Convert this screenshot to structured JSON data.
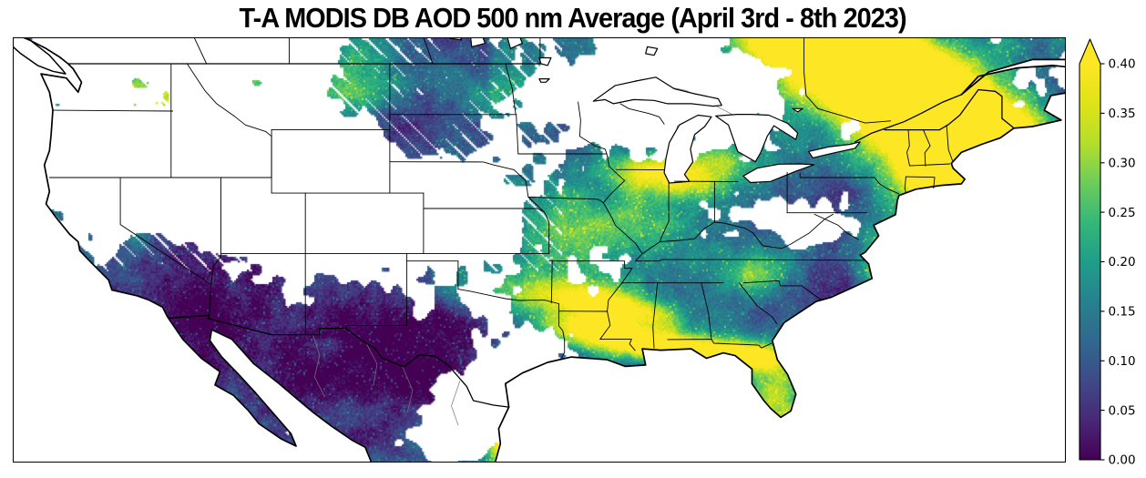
{
  "title": "T-A MODIS DB AOD 500 nm Average (April 3rd - 8th 2023)",
  "colors": {
    "background": "#ffffff",
    "map_border": "#000000",
    "coastline": "#000000",
    "state_line": "#000000",
    "admin_gray": "#777777",
    "no_data": "#ffffff",
    "viridis": [
      "#440154",
      "#482878",
      "#3e4a89",
      "#31688e",
      "#26828e",
      "#1f9e89",
      "#35b779",
      "#6dcd59",
      "#b5de2b",
      "#dfe318",
      "#fde725"
    ]
  },
  "chart_data": {
    "type": "heatmap",
    "title": "T-A MODIS DB AOD 500 nm Average (April 3rd - 8th 2023)",
    "variable": "MODIS Deep Blue Aerosol Optical Depth at 500 nm, averaged April 3rd - 8th 2023 (Terra-Aqua)",
    "region": "Contiguous United States with southern Canada and northern Mexico",
    "colormap": "viridis",
    "legend_position": "right",
    "grid": false,
    "colorbar": {
      "min": 0.0,
      "max": 0.4,
      "extend_max_arrow": true,
      "orientation": "vertical",
      "tick_values": [
        0.0,
        0.05,
        0.1,
        0.15,
        0.2,
        0.25,
        0.3,
        0.35,
        0.4
      ],
      "tick_labels": [
        "0.00",
        "0.05",
        "0.10",
        "0.15",
        "0.20",
        "0.25",
        "0.30",
        "0.35",
        "0.40"
      ]
    },
    "observations": [
      "Very low AOD (0.02-0.08, dark purple) densely covering Nevada, Utah, Arizona, New Mexico, west Texas, Chihuahua and Baja California",
      "Smoke plume with AOD > 0.40 (yellow) in a diagonal band over southern Quebec / Ontario and northern New England",
      "AOD > 0.40 yellow patch over south Texas / northeastern Mexico reaching the bottom of the map",
      "Elevated AOD streaks (0.25-0.40) across east Texas, Louisiana and the Red River valley",
      "Moderate AOD (0.15-0.25, teal-green) over Washington state, the upper Midwest, the lower Great Lakes shore, the Southeast and Florida, with yellow-green spots near south Florida",
      "White no-data gaps over Oregon, Idaho, Wyoming, Colorado, Nebraska, central Texas, Kentucky / West Virginia, Minnesota and the Great Lakes"
    ],
    "hotspots": [
      {
        "name": "quebec-smoke-plume-core",
        "fx": 0.845,
        "fy": 0.13,
        "sx": 120,
        "sy": 42,
        "rot": 0.66,
        "amp": 0.55
      },
      {
        "name": "quebec-plume-ne-band",
        "fx": 0.95,
        "fy": 0.24,
        "sx": 70,
        "sy": 26,
        "rot": 0.66,
        "amp": 0.38
      },
      {
        "name": "new-england-plume-arm",
        "fx": 0.885,
        "fy": 0.34,
        "sx": 55,
        "sy": 22,
        "rot": 0.66,
        "amp": 0.3
      },
      {
        "name": "ontario-plume-nw",
        "fx": 0.765,
        "fy": 0.02,
        "sx": 70,
        "sy": 30,
        "rot": 0.5,
        "amp": 0.42
      },
      {
        "name": "south-texas-smoke",
        "fx": 0.472,
        "fy": 0.92,
        "sx": 22,
        "sy": 34,
        "rot": 0,
        "amp": 0.5
      },
      {
        "name": "south-texas-secondary",
        "fx": 0.468,
        "fy": 0.8,
        "sx": 13,
        "sy": 18,
        "rot": 0,
        "amp": 0.25
      },
      {
        "name": "east-texas-streak",
        "fx": 0.56,
        "fy": 0.695,
        "sx": 55,
        "sy": 13,
        "rot": 0.12,
        "amp": 0.33
      },
      {
        "name": "louisiana-streak",
        "fx": 0.635,
        "fy": 0.735,
        "sx": 45,
        "sy": 11,
        "rot": 0.08,
        "amp": 0.33
      },
      {
        "name": "arklatex-band",
        "fx": 0.575,
        "fy": 0.635,
        "sx": 45,
        "sy": 11,
        "rot": 0.18,
        "amp": 0.25
      },
      {
        "name": "gulf-coast-louisiana",
        "fx": 0.7,
        "fy": 0.75,
        "sx": 30,
        "sy": 12,
        "rot": 0,
        "amp": 0.28
      },
      {
        "name": "red-river-band",
        "fx": 0.5,
        "fy": 0.615,
        "sx": 60,
        "sy": 16,
        "rot": 0.08,
        "amp": 0.2
      },
      {
        "name": "florida-south",
        "fx": 0.742,
        "fy": 0.93,
        "sx": 13,
        "sy": 16,
        "rot": 0,
        "amp": 0.33
      },
      {
        "name": "florida-mid",
        "fx": 0.728,
        "fy": 0.84,
        "sx": 18,
        "sy": 26,
        "rot": 0,
        "amp": 0.16
      },
      {
        "name": "washington-cluster",
        "fx": 0.135,
        "fy": 0.155,
        "sx": 55,
        "sy": 38,
        "rot": 0,
        "amp": 0.22
      },
      {
        "name": "idaho-panhandle",
        "fx": 0.215,
        "fy": 0.1,
        "sx": 45,
        "sy": 28,
        "rot": 0,
        "amp": 0.14
      },
      {
        "name": "california-central-valley",
        "fx": 0.105,
        "fy": 0.4,
        "sx": 11,
        "sy": 30,
        "rot": -0.45,
        "amp": 0.18
      },
      {
        "name": "lake-michigan-shore",
        "fx": 0.615,
        "fy": 0.325,
        "sx": 40,
        "sy": 14,
        "rot": 0.15,
        "amp": 0.22
      },
      {
        "name": "michigan-band",
        "fx": 0.66,
        "fy": 0.295,
        "sx": 35,
        "sy": 16,
        "rot": 0.1,
        "amp": 0.15
      },
      {
        "name": "midwest-patch",
        "fx": 0.545,
        "fy": 0.45,
        "sx": 60,
        "sy": 30,
        "rot": 0,
        "amp": 0.12
      },
      {
        "name": "appalachia-green",
        "fx": 0.705,
        "fy": 0.55,
        "sx": 30,
        "sy": 15,
        "rot": 0,
        "amp": 0.14
      },
      {
        "name": "chesapeake-coastal",
        "fx": 0.825,
        "fy": 0.53,
        "sx": 16,
        "sy": 26,
        "rot": 0,
        "amp": 0.2
      },
      {
        "name": "montana-teal",
        "fx": 0.33,
        "fy": 0.095,
        "sx": 55,
        "sy": 25,
        "rot": 0,
        "amp": 0.15
      },
      {
        "name": "minnesota-teal",
        "fx": 0.47,
        "fy": 0.13,
        "sx": 45,
        "sy": 25,
        "rot": 0,
        "amp": 0.1
      },
      {
        "name": "kansas-specks",
        "fx": 0.475,
        "fy": 0.56,
        "sx": 45,
        "sy": 20,
        "rot": 0,
        "amp": 0.1
      }
    ],
    "low_regions": [
      {
        "name": "southwest-desert",
        "fx": 0.205,
        "fy": 0.615,
        "sx": 130,
        "sy": 95,
        "rot": 0,
        "amp": -0.105
      },
      {
        "name": "northern-mexico",
        "fx": 0.33,
        "fy": 0.88,
        "sx": 120,
        "sy": 60,
        "rot": 0,
        "amp": -0.075
      },
      {
        "name": "west-texas",
        "fx": 0.4,
        "fy": 0.72,
        "sx": 80,
        "sy": 50,
        "rot": 0,
        "amp": -0.065
      },
      {
        "name": "dakotas",
        "fx": 0.375,
        "fy": 0.115,
        "sx": 95,
        "sy": 45,
        "rot": 0,
        "amp": -0.05
      },
      {
        "name": "southeast",
        "fx": 0.73,
        "fy": 0.625,
        "sx": 80,
        "sy": 45,
        "rot": 0,
        "amp": -0.055
      },
      {
        "name": "ohio-valley",
        "fx": 0.705,
        "fy": 0.41,
        "sx": 70,
        "sy": 30,
        "rot": 0,
        "amp": -0.04
      },
      {
        "name": "texas-central",
        "fx": 0.47,
        "fy": 0.66,
        "sx": 60,
        "sy": 35,
        "rot": 0,
        "amp": -0.04
      }
    ],
    "coverage_gaps": [
      {
        "name": "oregon-idaho",
        "fx": 0.15,
        "fy": 0.33,
        "sx": 95,
        "sy": 72,
        "rot": 0,
        "amp": -0.95
      },
      {
        "name": "idaho-wyoming",
        "fx": 0.245,
        "fy": 0.33,
        "sx": 70,
        "sy": 60,
        "rot": 0,
        "amp": -0.75
      },
      {
        "name": "wyoming",
        "fx": 0.3,
        "fy": 0.34,
        "sx": 60,
        "sy": 48,
        "rot": 0,
        "amp": -0.62
      },
      {
        "name": "colorado",
        "fx": 0.315,
        "fy": 0.47,
        "sx": 40,
        "sy": 35,
        "rot": 0,
        "amp": -0.55
      },
      {
        "name": "cascades-gap",
        "fx": 0.205,
        "fy": 0.125,
        "sx": 32,
        "sy": 28,
        "rot": 0,
        "amp": -0.5
      },
      {
        "name": "nebraska",
        "fx": 0.39,
        "fy": 0.45,
        "sx": 55,
        "sy": 35,
        "rot": 0,
        "amp": -0.72
      },
      {
        "name": "kansas-west",
        "fx": 0.445,
        "fy": 0.4,
        "sx": 40,
        "sy": 30,
        "rot": 0,
        "amp": -0.45
      },
      {
        "name": "texas-central",
        "fx": 0.475,
        "fy": 0.79,
        "sx": 42,
        "sy": 38,
        "rot": 0,
        "amp": -0.68
      },
      {
        "name": "texas-border-gap",
        "fx": 0.445,
        "fy": 0.875,
        "sx": 24,
        "sy": 28,
        "rot": 0,
        "amp": -0.5
      },
      {
        "name": "kentucky-wv",
        "fx": 0.735,
        "fy": 0.445,
        "sx": 45,
        "sy": 25,
        "rot": 0,
        "amp": -0.55
      },
      {
        "name": "ohio-indiana",
        "fx": 0.672,
        "fy": 0.415,
        "sx": 40,
        "sy": 22,
        "rot": 0,
        "amp": -0.35
      },
      {
        "name": "minnesota",
        "fx": 0.525,
        "fy": 0.175,
        "sx": 45,
        "sy": 33,
        "rot": 0,
        "amp": -0.5
      },
      {
        "name": "wisconsin",
        "fx": 0.59,
        "fy": 0.22,
        "sx": 30,
        "sy": 24,
        "rot": 0,
        "amp": -0.38
      },
      {
        "name": "ontario-north",
        "fx": 0.62,
        "fy": 0.04,
        "sx": 60,
        "sy": 28,
        "rot": 0,
        "amp": -0.45
      },
      {
        "name": "lakes-margin",
        "fx": 0.66,
        "fy": 0.19,
        "sx": 65,
        "sy": 35,
        "rot": 0,
        "amp": -0.35
      },
      {
        "name": "mexico-sierra",
        "fx": 0.41,
        "fy": 0.93,
        "sx": 40,
        "sy": 25,
        "rot": 0,
        "amp": -0.5
      },
      {
        "name": "virginia-gap",
        "fx": 0.78,
        "fy": 0.46,
        "sx": 30,
        "sy": 18,
        "rot": 0,
        "amp": -0.3
      },
      {
        "name": "ozark-gap",
        "fx": 0.55,
        "fy": 0.55,
        "sx": 35,
        "sy": 22,
        "rot": 0,
        "amp": -0.3
      },
      {
        "name": "oregon-coast",
        "fx": 0.07,
        "fy": 0.25,
        "sx": 40,
        "sy": 40,
        "rot": 0,
        "amp": -0.5
      },
      {
        "name": "british-columbia",
        "fx": 0.1,
        "fy": 0.04,
        "sx": 80,
        "sy": 30,
        "rot": 0,
        "amp": -0.5
      },
      {
        "name": "alberta",
        "fx": 0.255,
        "fy": 0.04,
        "sx": 50,
        "sy": 25,
        "rot": 0,
        "amp": -0.35
      },
      {
        "name": "plume-inner-gap",
        "fx": 0.8,
        "fy": 0.23,
        "sx": 30,
        "sy": 14,
        "rot": 0.66,
        "amp": -0.35
      }
    ],
    "coverage_boosts": [
      {
        "name": "southwest",
        "fx": 0.205,
        "fy": 0.615,
        "sx": 130,
        "sy": 95,
        "rot": 0,
        "amp": 0.5
      },
      {
        "name": "dakotas-montana",
        "fx": 0.38,
        "fy": 0.12,
        "sx": 100,
        "sy": 48,
        "rot": 0,
        "amp": 0.42
      },
      {
        "name": "southeast",
        "fx": 0.725,
        "fy": 0.6,
        "sx": 95,
        "sy": 55,
        "rot": 0,
        "amp": 0.45
      },
      {
        "name": "midwest",
        "fx": 0.55,
        "fy": 0.43,
        "sx": 90,
        "sy": 55,
        "rot": 0,
        "amp": 0.3
      },
      {
        "name": "quebec-plume",
        "fx": 0.85,
        "fy": 0.14,
        "sx": 130,
        "sy": 60,
        "rot": 0.66,
        "amp": 0.5
      },
      {
        "name": "new-england",
        "fx": 0.86,
        "fy": 0.33,
        "sx": 80,
        "sy": 40,
        "rot": 0,
        "amp": 0.32
      },
      {
        "name": "east-texas",
        "fx": 0.575,
        "fy": 0.68,
        "sx": 80,
        "sy": 40,
        "rot": 0,
        "amp": 0.35
      },
      {
        "name": "chihuahua",
        "fx": 0.33,
        "fy": 0.83,
        "sx": 70,
        "sy": 45,
        "rot": 0,
        "amp": 0.32
      },
      {
        "name": "baja",
        "fx": 0.185,
        "fy": 0.88,
        "sx": 26,
        "sy": 55,
        "rot": -0.5,
        "amp": 0.3
      },
      {
        "name": "california-south",
        "fx": 0.13,
        "fy": 0.52,
        "sx": 30,
        "sy": 45,
        "rot": 0,
        "amp": 0.35
      },
      {
        "name": "washington",
        "fx": 0.14,
        "fy": 0.15,
        "sx": 55,
        "sy": 40,
        "rot": 0,
        "amp": 0.4
      },
      {
        "name": "idaho-panhandle",
        "fx": 0.22,
        "fy": 0.1,
        "sx": 35,
        "sy": 25,
        "rot": 0,
        "amp": 0.3
      },
      {
        "name": "florida",
        "fx": 0.73,
        "fy": 0.88,
        "sx": 24,
        "sy": 48,
        "rot": 0,
        "amp": 0.4
      },
      {
        "name": "texas-south-smoke",
        "fx": 0.472,
        "fy": 0.92,
        "sx": 26,
        "sy": 40,
        "rot": 0,
        "amp": 0.45
      },
      {
        "name": "appalachia-south",
        "fx": 0.7,
        "fy": 0.52,
        "sx": 60,
        "sy": 30,
        "rot": 0,
        "amp": 0.25
      },
      {
        "name": "mid-atlantic-coast",
        "fx": 0.82,
        "fy": 0.52,
        "sx": 25,
        "sy": 35,
        "rot": 0,
        "amp": 0.3
      },
      {
        "name": "michigan-south",
        "fx": 0.645,
        "fy": 0.33,
        "sx": 55,
        "sy": 25,
        "rot": 0,
        "amp": 0.3
      },
      {
        "name": "new-york",
        "fx": 0.8,
        "fy": 0.3,
        "sx": 40,
        "sy": 20,
        "rot": 0,
        "amp": 0.25
      }
    ]
  }
}
